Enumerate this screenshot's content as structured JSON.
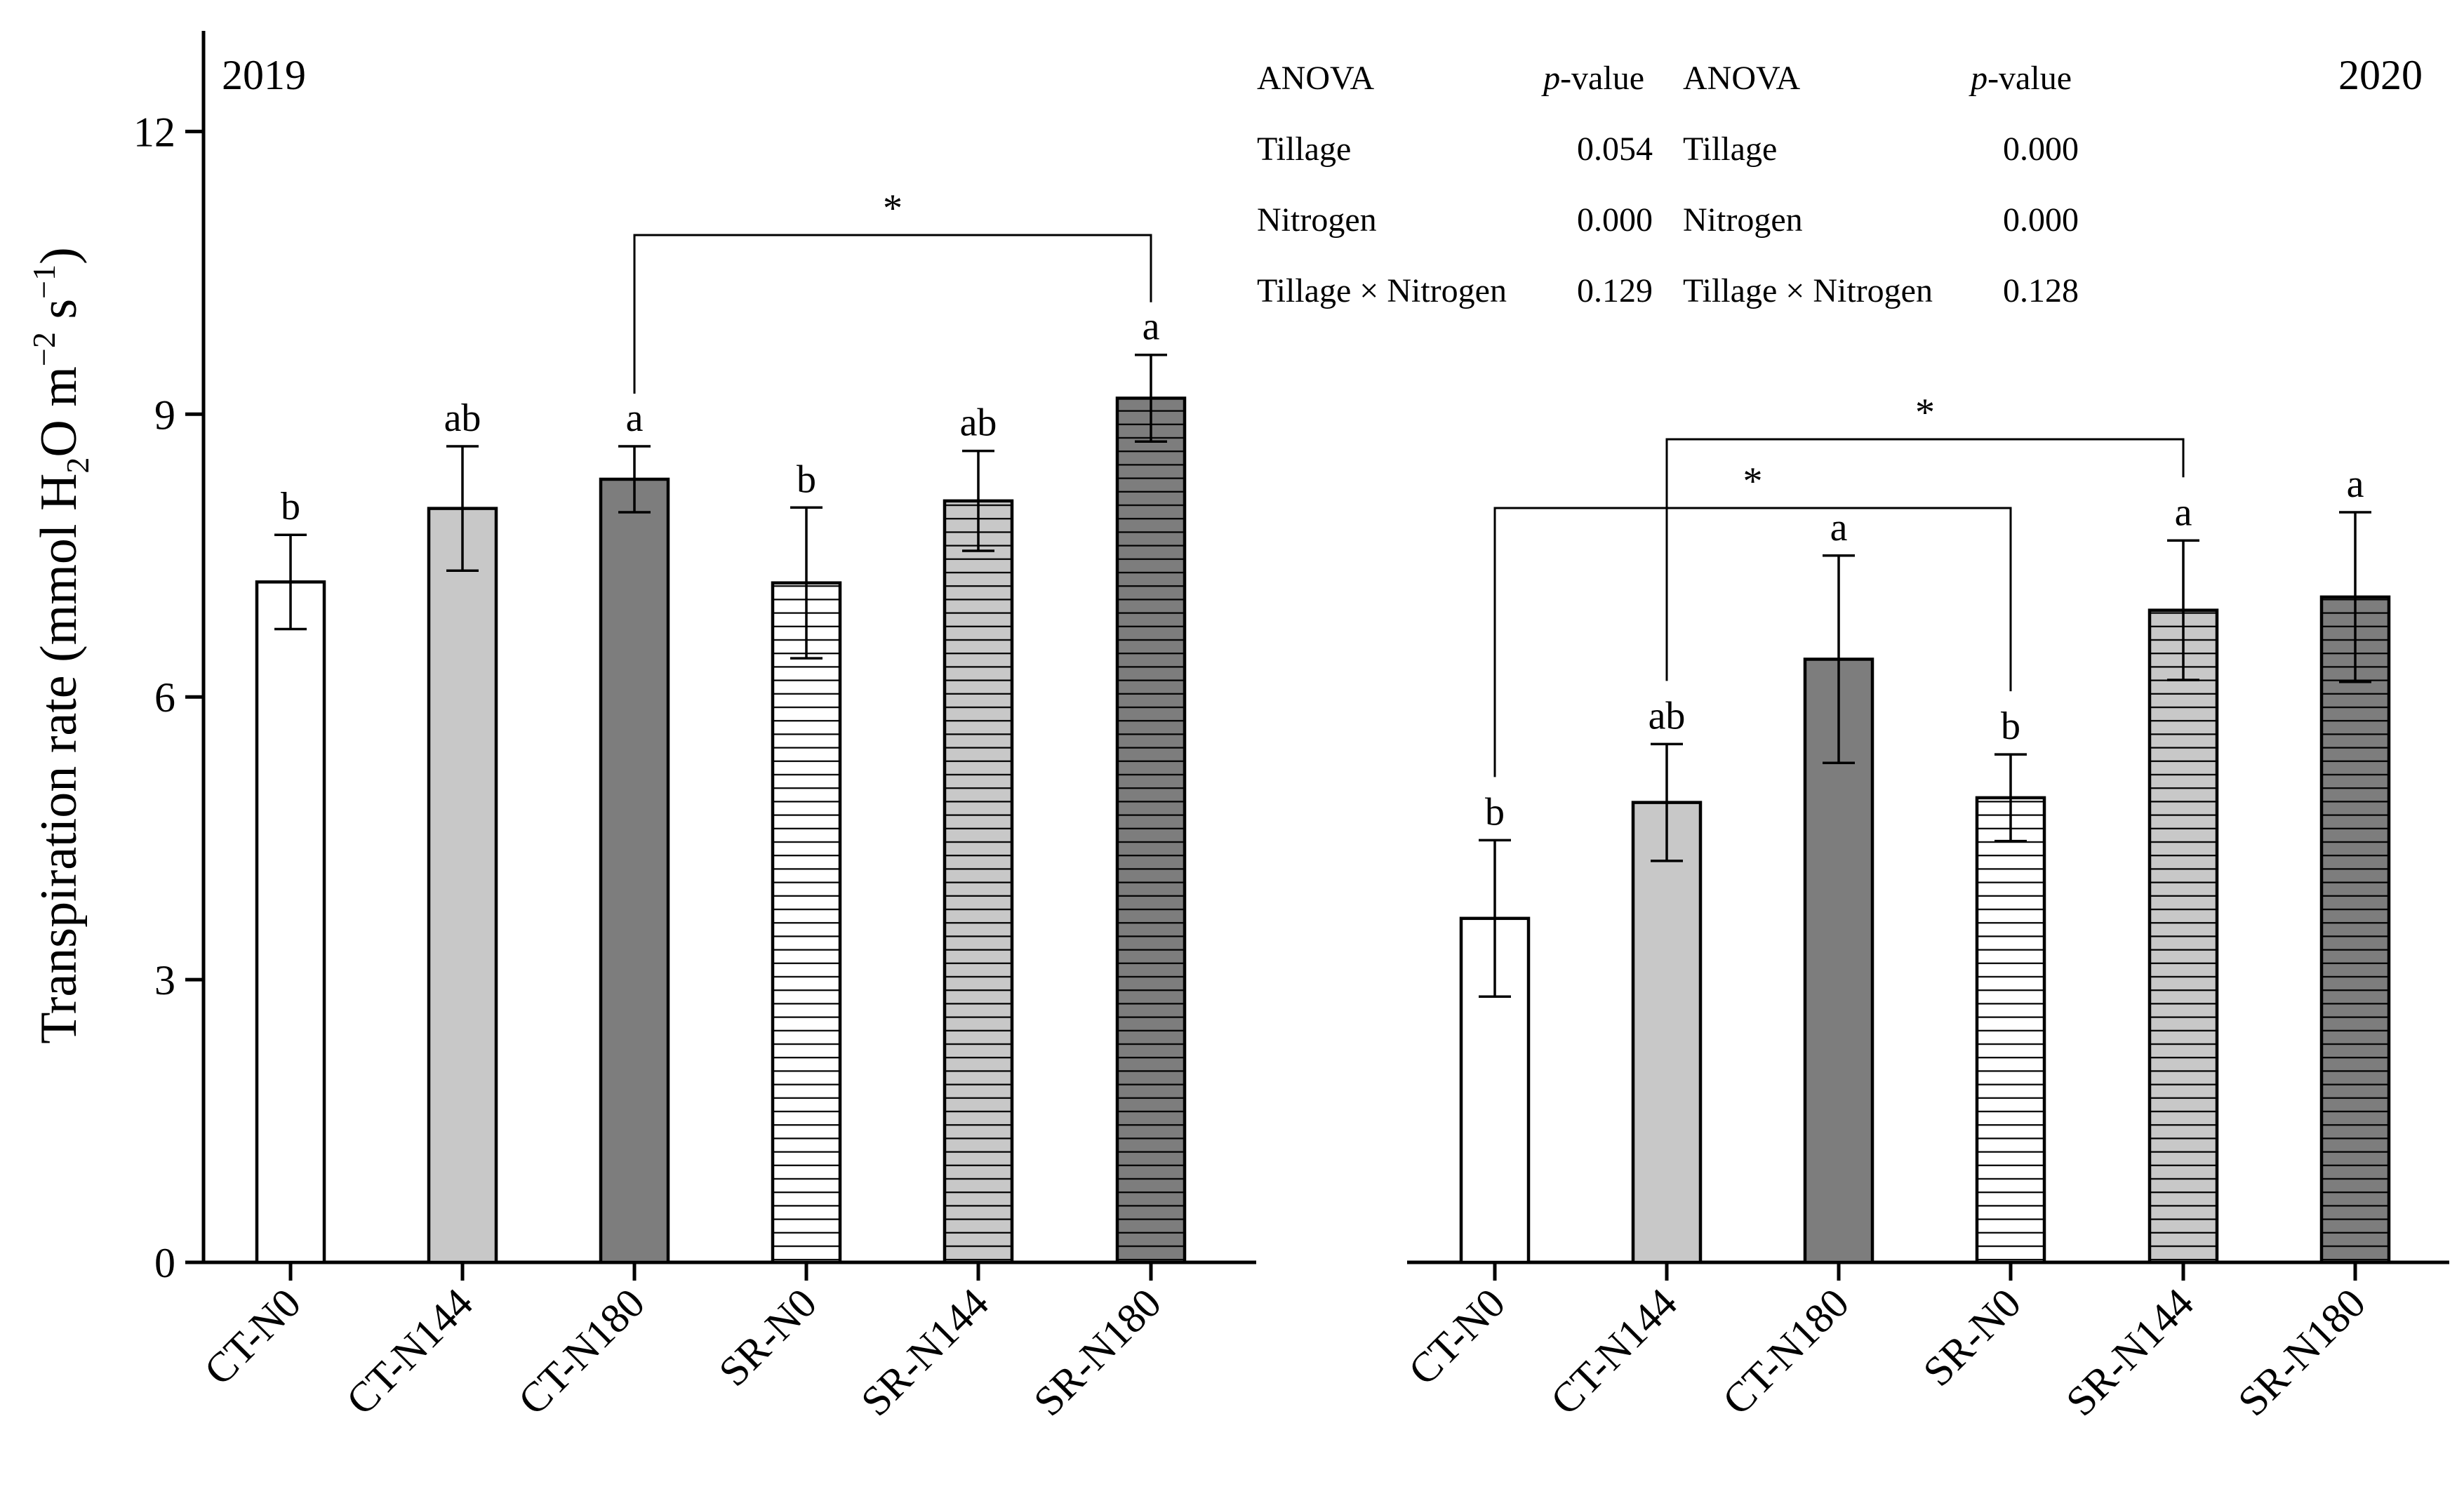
{
  "chart_data": [
    {
      "type": "bar",
      "panel_label": "2019",
      "categories": [
        "CT-N0",
        "CT-N144",
        "CT-N180",
        "SR-N0",
        "SR-N144",
        "SR-N180"
      ],
      "values": [
        7.22,
        8.0,
        8.31,
        7.21,
        8.08,
        9.17
      ],
      "errors": [
        0.5,
        0.66,
        0.35,
        0.8,
        0.53,
        0.46
      ],
      "letters": [
        "b",
        "ab",
        "a",
        "b",
        "ab",
        "a"
      ],
      "ylim": [
        0,
        13
      ],
      "yticks": [
        0,
        3,
        6,
        9,
        12
      ],
      "ylabel": {
        "main": "Transpiration rate (mmol H",
        "sub2": "2",
        "mid": "O m",
        "sup1": "−2",
        "space": " s",
        "sup2": "−1",
        "end": ")"
      },
      "significance": [
        {
          "from": "CT-N180",
          "to": "SR-N180",
          "label": "*"
        }
      ],
      "anova": {
        "header": [
          "ANOVA",
          "p",
          "-value"
        ],
        "rows": [
          {
            "factor": "Tillage",
            "p": "0.054"
          },
          {
            "factor": "Nitrogen",
            "p": "0.000"
          },
          {
            "factor": "Tillage × Nitrogen",
            "p": "0.129"
          }
        ]
      }
    },
    {
      "type": "bar",
      "panel_label": "2020",
      "categories": [
        "CT-N0",
        "CT-N144",
        "CT-N180",
        "SR-N0",
        "SR-N144",
        "SR-N180"
      ],
      "values": [
        3.65,
        4.88,
        6.4,
        4.93,
        6.92,
        7.06
      ],
      "errors": [
        0.83,
        0.62,
        1.1,
        0.46,
        0.74,
        0.9
      ],
      "letters": [
        "b",
        "ab",
        "a",
        "b",
        "a",
        "a"
      ],
      "ylim": [
        0,
        13
      ],
      "significance": [
        {
          "from": "CT-N0",
          "to": "SR-N0",
          "label": "*"
        },
        {
          "from": "CT-N144",
          "to": "SR-N144",
          "label": "*"
        }
      ],
      "anova": {
        "header": [
          "ANOVA",
          "p",
          "-value"
        ],
        "rows": [
          {
            "factor": "Tillage",
            "p": "0.000"
          },
          {
            "factor": "Nitrogen",
            "p": "0.000"
          },
          {
            "factor": "Tillage × Nitrogen",
            "p": "0.128"
          }
        ]
      }
    }
  ]
}
